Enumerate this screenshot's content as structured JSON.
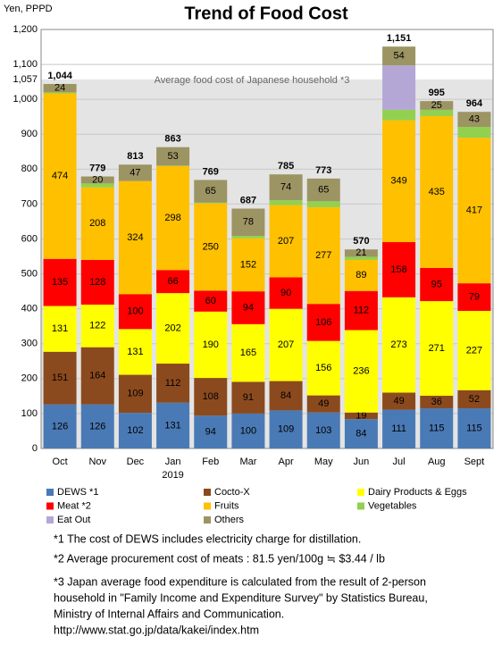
{
  "chart_data": {
    "type": "stacked_bar",
    "title": "Trend of Food Cost",
    "y_label": "Yen, PPPD",
    "categories": [
      "Oct",
      "Nov",
      "Dec",
      "Jan",
      "Feb",
      "Mar",
      "Apr",
      "May",
      "Jun",
      "Jul",
      "Aug",
      "Sept"
    ],
    "category_sublabels": [
      null,
      null,
      null,
      "2019",
      null,
      null,
      null,
      null,
      null,
      null,
      null,
      null
    ],
    "series": [
      {
        "name": "DEWS *1",
        "color": "#4a7ab5",
        "labels": true,
        "values": [
          126,
          126,
          102,
          131,
          94,
          100,
          109,
          103,
          84,
          111,
          115,
          115
        ]
      },
      {
        "name": "Cocto-X",
        "color": "#8b4a1e",
        "labels": true,
        "values": [
          151,
          164,
          109,
          112,
          108,
          91,
          84,
          49,
          19,
          49,
          36,
          52
        ]
      },
      {
        "name": "Dairy Products & Eggs",
        "color": "#ffff00",
        "labels": true,
        "values": [
          131,
          122,
          131,
          202,
          190,
          165,
          207,
          156,
          236,
          273,
          271,
          227
        ]
      },
      {
        "name": "Meat *2",
        "color": "#ff0000",
        "labels": true,
        "values": [
          135,
          128,
          100,
          66,
          60,
          94,
          90,
          106,
          112,
          158,
          95,
          79
        ]
      },
      {
        "name": "Fruits",
        "color": "#ffc000",
        "labels": true,
        "values": [
          474,
          208,
          324,
          298,
          250,
          152,
          207,
          277,
          89,
          349,
          435,
          417
        ]
      },
      {
        "name": "Vegetables",
        "color": "#92d050",
        "labels": false,
        "values": [
          3,
          11,
          0,
          1,
          2,
          7,
          14,
          17,
          9,
          30,
          18,
          31
        ]
      },
      {
        "name": "Eat Out",
        "color": "#b4a7d6",
        "labels": false,
        "values": [
          0,
          0,
          0,
          0,
          0,
          0,
          0,
          0,
          0,
          127,
          0,
          0
        ]
      },
      {
        "name": "Others",
        "color": "#9c9463",
        "labels": true,
        "values": [
          24,
          20,
          47,
          53,
          65,
          78,
          74,
          65,
          21,
          54,
          25,
          43
        ]
      }
    ],
    "totals": {
      "values": [
        1044,
        779,
        813,
        863,
        769,
        687,
        785,
        773,
        570,
        1151,
        995,
        964
      ],
      "value_labels": [
        "1,044",
        "779",
        "813",
        "863",
        "769",
        "687",
        "785",
        "773",
        "570",
        "1,151",
        "995",
        "964"
      ]
    },
    "reference": {
      "value": 1057,
      "label": "1,057",
      "text": "Average food cost of Japanese household *3"
    },
    "ylim": [
      0,
      1200
    ],
    "yticks": [
      0,
      100,
      200,
      300,
      400,
      500,
      600,
      700,
      800,
      900,
      {
        "value": 1000,
        "label": "1,000"
      },
      {
        "value": 1100,
        "label": "1,100"
      },
      {
        "value": 1200,
        "label": "1,200"
      }
    ],
    "grid": true,
    "notes": [
      "*1 The cost of DEWS includes electricity charge for distillation.",
      "*2 Average procurement cost of meats : 81.5 yen/100g ≒ $3.44 / lb",
      "*3 Japan average food expenditure is calculated from the result of 2-person",
      "household  in \"Family Income and Expenditure Survey\" by  Statistics Bureau,",
      "Ministry of Internal Affairs and Communication.",
      "http://www.stat.go.jp/data/kakei/index.htm"
    ]
  }
}
